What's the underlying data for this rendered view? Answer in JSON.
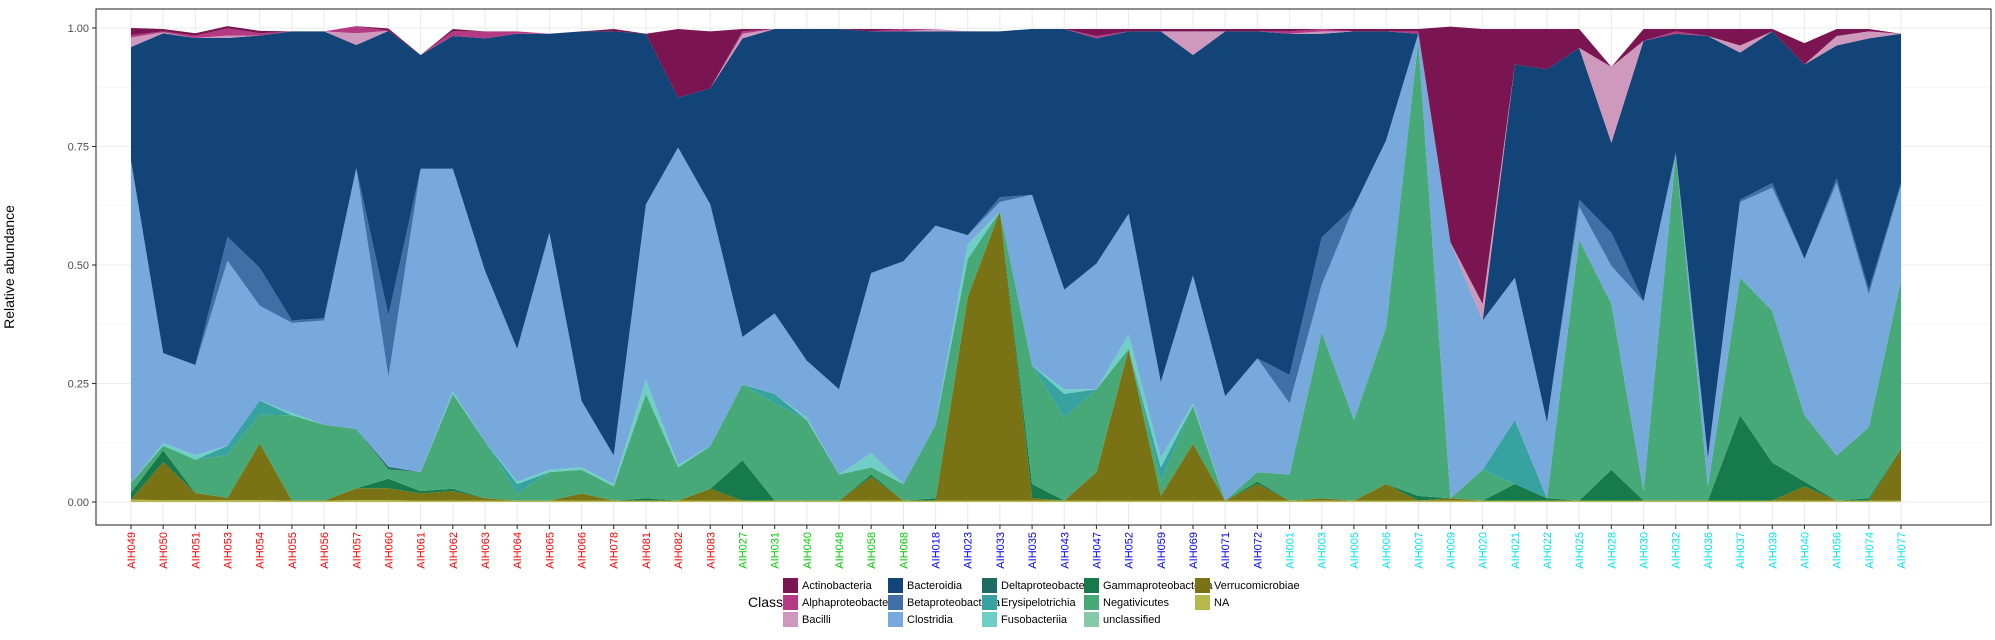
{
  "chart_data": {
    "type": "area",
    "stacked": true,
    "ylabel": "Relative abundance",
    "xlabel": "",
    "ylim": [
      0,
      1
    ],
    "yticks": [
      0.0,
      0.25,
      0.5,
      0.75,
      1.0
    ],
    "ytick_labels": [
      "0.00",
      "0.25",
      "0.50",
      "0.75",
      "1.00"
    ],
    "grid": true,
    "legend_position": "bottom",
    "legend_title": "Class",
    "categories": [
      "AIH049",
      "AIH050",
      "AIH051",
      "AIH053",
      "AIH054",
      "AIH055",
      "AIH056",
      "AIH057",
      "AIH060",
      "AIH061",
      "AIH062",
      "AIH063",
      "AIH064",
      "AIH065",
      "AIH066",
      "AIH078",
      "AIH081",
      "AIH082",
      "AIH083",
      "AIH027",
      "AIH031",
      "AIH040",
      "AIH048",
      "AIH058",
      "AIH068",
      "AIH018",
      "AIH023",
      "AIH033",
      "AIH035",
      "AIH043",
      "AIH047",
      "AIH052",
      "AIH059",
      "AIH069",
      "AIH071",
      "AIH072",
      "AIH001",
      "AIH003",
      "AIH005",
      "AIH006",
      "AIH007",
      "AIH009",
      "AIH020",
      "AIH021",
      "AIH022",
      "AIH025",
      "AIH028",
      "AIH030",
      "AIH032",
      "AIH036",
      "AIH037",
      "AIH039",
      "AIH040",
      "AIH056",
      "AIH074",
      "AIH077"
    ],
    "category_colors": [
      "#ff0000",
      "#ff0000",
      "#ff0000",
      "#ff0000",
      "#ff0000",
      "#ff0000",
      "#ff0000",
      "#ff0000",
      "#ff0000",
      "#ff0000",
      "#ff0000",
      "#ff0000",
      "#ff0000",
      "#ff0000",
      "#ff0000",
      "#ff0000",
      "#ff0000",
      "#ff0000",
      "#ff0000",
      "#00cc00",
      "#00cc00",
      "#00cc00",
      "#00cc00",
      "#00cc00",
      "#00cc00",
      "#0000ff",
      "#0000ff",
      "#0000ff",
      "#0000ff",
      "#0000ff",
      "#0000ff",
      "#0000ff",
      "#0000ff",
      "#0000ff",
      "#0000ff",
      "#0000ff",
      "#00e5ee",
      "#00e5ee",
      "#00e5ee",
      "#00e5ee",
      "#00e5ee",
      "#00e5ee",
      "#00e5ee",
      "#00e5ee",
      "#00e5ee",
      "#00e5ee",
      "#00e5ee",
      "#00e5ee",
      "#00e5ee",
      "#00e5ee",
      "#00e5ee",
      "#00e5ee",
      "#00e5ee",
      "#00e5ee",
      "#00e5ee",
      "#00e5ee"
    ],
    "stack_order": [
      "NA",
      "Verrucomicrobiae",
      "Gammaproteobacteria",
      "Negativicutes",
      "Deltaproteobacteria",
      "Erysipelotrichia",
      "Fusobacteriia",
      "unclassified",
      "Clostridia",
      "Betaproteobacteria",
      "Bacteroidia",
      "Bacilli",
      "Alphaproteobacteria",
      "Actinobacteria"
    ],
    "series": [
      {
        "name": "NA",
        "color": "#b5b84a",
        "values": [
          0.005,
          0.004,
          0.004,
          0.004,
          0.004,
          0.003,
          0.003,
          0.004,
          0.004,
          0.003,
          0.003,
          0.003,
          0.003,
          0.003,
          0.003,
          0.003,
          0.003,
          0.003,
          0.003,
          0.003,
          0.003,
          0.003,
          0.003,
          0.003,
          0.003,
          0.003,
          0.003,
          0.003,
          0.003,
          0.003,
          0.003,
          0.003,
          0.003,
          0.003,
          0.003,
          0.003,
          0.003,
          0.003,
          0.003,
          0.003,
          0.003,
          0.003,
          0.003,
          0.003,
          0.003,
          0.003,
          0.003,
          0.003,
          0.003,
          0.003,
          0.003,
          0.003,
          0.003,
          0.003,
          0.003,
          0.003
        ]
      },
      {
        "name": "Verrucomicrobiae",
        "color": "#7a7315",
        "values": [
          0.0,
          0.08,
          0.015,
          0.005,
          0.12,
          0.0,
          0.0,
          0.025,
          0.025,
          0.015,
          0.02,
          0.005,
          0.0,
          0.0,
          0.015,
          0.0,
          0.0,
          0.0,
          0.025,
          0.0,
          0.0,
          0.0,
          0.0,
          0.05,
          0.0,
          0.0,
          0.43,
          0.61,
          0.005,
          0.0,
          0.06,
          0.32,
          0.01,
          0.12,
          0.0,
          0.035,
          0.0,
          0.005,
          0.0,
          0.035,
          0.0,
          0.005,
          0.0,
          0.0,
          0.0,
          0.0,
          0.0,
          0.0,
          0.0,
          0.0,
          0.0,
          0.0,
          0.03,
          0.0,
          0.0,
          0.11
        ]
      },
      {
        "name": "Gammaproteobacteria",
        "color": "#167a4a",
        "values": [
          0.015,
          0.025,
          0.0,
          0.0,
          0.0,
          0.0,
          0.0,
          0.0,
          0.02,
          0.005,
          0.005,
          0.0,
          0.0,
          0.0,
          0.0,
          0.0,
          0.005,
          0.0,
          0.0,
          0.085,
          0.0,
          0.0,
          0.0,
          0.005,
          0.0,
          0.005,
          0.0,
          0.0,
          0.03,
          0.0,
          0.0,
          0.0,
          0.0,
          0.0,
          0.0,
          0.005,
          0.0,
          0.0,
          0.0,
          0.0,
          0.01,
          0.0,
          0.0,
          0.035,
          0.005,
          0.0,
          0.065,
          0.0,
          0.0,
          0.0,
          0.18,
          0.08,
          0.01,
          0.0,
          0.005,
          0.0
        ]
      },
      {
        "name": "Negativicutes",
        "color": "#47a978",
        "values": [
          0.02,
          0.01,
          0.07,
          0.09,
          0.06,
          0.18,
          0.16,
          0.125,
          0.02,
          0.04,
          0.2,
          0.12,
          0.015,
          0.06,
          0.05,
          0.03,
          0.22,
          0.07,
          0.09,
          0.16,
          0.205,
          0.17,
          0.055,
          0.015,
          0.035,
          0.155,
          0.08,
          0.0,
          0.25,
          0.175,
          0.175,
          0.0,
          0.03,
          0.08,
          0.0,
          0.02,
          0.055,
          0.35,
          0.17,
          0.33,
          0.96,
          0.0,
          0.065,
          0.0,
          0.0,
          0.55,
          0.35,
          0.02,
          0.73,
          0.03,
          0.29,
          0.32,
          0.14,
          0.095,
          0.15,
          0.355
        ]
      },
      {
        "name": "Deltaproteobacteria",
        "color": "#1d6b63",
        "values": [
          0.0,
          0.0,
          0.0,
          0.0,
          0.0,
          0.0,
          0.0,
          0.0,
          0.005,
          0.0,
          0.0,
          0.0,
          0.0,
          0.0,
          0.0,
          0.0,
          0.0,
          0.0,
          0.0,
          0.0,
          0.0,
          0.0,
          0.0,
          0.0,
          0.0,
          0.0,
          0.0,
          0.0,
          0.0,
          0.0,
          0.0,
          0.0,
          0.0,
          0.0,
          0.0,
          0.0,
          0.0,
          0.0,
          0.0,
          0.0,
          0.0,
          0.0,
          0.0,
          0.0,
          0.0,
          0.0,
          0.0,
          0.0,
          0.0,
          0.0,
          0.0,
          0.0,
          0.0,
          0.0,
          0.0,
          0.0
        ]
      },
      {
        "name": "Erysipelotrichia",
        "color": "#36a3a0",
        "values": [
          0.0,
          0.0,
          0.0,
          0.02,
          0.03,
          0.0,
          0.0,
          0.0,
          0.0,
          0.0,
          0.0,
          0.0,
          0.02,
          0.0,
          0.0,
          0.0,
          0.0,
          0.0,
          0.0,
          0.0,
          0.02,
          0.0,
          0.0,
          0.0,
          0.0,
          0.0,
          0.0,
          0.0,
          0.0,
          0.05,
          0.0,
          0.0,
          0.03,
          0.0,
          0.0,
          0.0,
          0.0,
          0.0,
          0.0,
          0.0,
          0.0,
          0.0,
          0.0,
          0.135,
          0.0,
          0.0,
          0.0,
          0.0,
          0.0,
          0.0,
          0.0,
          0.0,
          0.0,
          0.0,
          0.0,
          0.0
        ]
      },
      {
        "name": "Fusobacteriia",
        "color": "#6fcfc7",
        "values": [
          0.0,
          0.005,
          0.01,
          0.0,
          0.0,
          0.005,
          0.0,
          0.0,
          0.0,
          0.0,
          0.005,
          0.0,
          0.005,
          0.005,
          0.005,
          0.005,
          0.03,
          0.005,
          0.0,
          0.0,
          0.0,
          0.005,
          0.0,
          0.03,
          0.0,
          0.0,
          0.03,
          0.0,
          0.0,
          0.01,
          0.0,
          0.03,
          0.02,
          0.005,
          0.0,
          0.0,
          0.0,
          0.0,
          0.0,
          0.0,
          0.0,
          0.0,
          0.0,
          0.0,
          0.0,
          0.0,
          0.0,
          0.0,
          0.0,
          0.0,
          0.0,
          0.0,
          0.0,
          0.0,
          0.0,
          0.0
        ]
      },
      {
        "name": "unclassified",
        "color": "#86c9a8",
        "values": [
          0.0,
          0.0,
          0.0,
          0.0,
          0.0,
          0.0,
          0.0,
          0.0,
          0.0,
          0.0,
          0.0,
          0.0,
          0.0,
          0.0,
          0.0,
          0.0,
          0.0,
          0.0,
          0.0,
          0.0,
          0.0,
          0.0,
          0.0,
          0.0,
          0.0,
          0.0,
          0.0,
          0.0,
          0.0,
          0.0,
          0.0,
          0.0,
          0.0,
          0.0,
          0.0,
          0.0,
          0.0,
          0.0,
          0.0,
          0.0,
          0.0,
          0.0,
          0.0,
          0.0,
          0.0,
          0.0,
          0.0,
          0.0,
          0.0,
          0.0,
          0.0,
          0.0,
          0.0,
          0.0,
          0.0,
          0.0
        ]
      },
      {
        "name": "Clostridia",
        "color": "#78a9dd",
        "values": [
          0.68,
          0.19,
          0.19,
          0.39,
          0.2,
          0.19,
          0.22,
          0.55,
          0.19,
          0.64,
          0.47,
          0.36,
          0.28,
          0.5,
          0.14,
          0.06,
          0.37,
          0.67,
          0.51,
          0.1,
          0.17,
          0.12,
          0.18,
          0.38,
          0.47,
          0.42,
          0.02,
          0.02,
          0.36,
          0.21,
          0.265,
          0.255,
          0.16,
          0.27,
          0.22,
          0.24,
          0.15,
          0.1,
          0.45,
          0.395,
          0.015,
          0.54,
          0.315,
          0.3,
          0.16,
          0.07,
          0.08,
          0.4,
          0.0,
          0.06,
          0.16,
          0.26,
          0.33,
          0.575,
          0.28,
          0.2
        ]
      },
      {
        "name": "Betaproteobacteria",
        "color": "#3f6fa5",
        "values": [
          0.0,
          0.0,
          0.0,
          0.05,
          0.08,
          0.005,
          0.005,
          0.0,
          0.13,
          0.0,
          0.0,
          0.0,
          0.0,
          0.0,
          0.0,
          0.0,
          0.0,
          0.0,
          0.0,
          0.0,
          0.0,
          0.0,
          0.0,
          0.0,
          0.0,
          0.0,
          0.0,
          0.01,
          0.0,
          0.0,
          0.0,
          0.0,
          0.0,
          0.0,
          0.0,
          0.0,
          0.06,
          0.1,
          0.0,
          0.0,
          0.0,
          0.0,
          0.0,
          0.0,
          0.0,
          0.015,
          0.07,
          0.0,
          0.005,
          0.0,
          0.005,
          0.01,
          0.0,
          0.01,
          0.01,
          0.005
        ]
      },
      {
        "name": "Bacteroidia",
        "color": "#124478",
        "values": [
          0.24,
          0.675,
          0.69,
          0.42,
          0.49,
          0.61,
          0.605,
          0.26,
          0.6,
          0.24,
          0.28,
          0.49,
          0.665,
          0.42,
          0.78,
          0.895,
          0.36,
          0.105,
          0.245,
          0.63,
          0.6,
          0.7,
          0.76,
          0.51,
          0.485,
          0.41,
          0.43,
          0.35,
          0.35,
          0.55,
          0.475,
          0.385,
          0.74,
          0.465,
          0.77,
          0.69,
          0.72,
          0.43,
          0.37,
          0.23,
          0.0,
          0.0,
          0.0,
          0.45,
          0.745,
          0.32,
          0.19,
          0.55,
          0.25,
          0.89,
          0.31,
          0.32,
          0.41,
          0.28,
          0.53,
          0.315
        ]
      },
      {
        "name": "Bacilli",
        "color": "#cf98bd",
        "values": [
          0.02,
          0.002,
          0.0,
          0.005,
          0.0,
          0.0,
          0.0,
          0.025,
          0.0,
          0.0,
          0.0,
          0.0,
          0.0,
          0.0,
          0.0,
          0.0,
          0.0,
          0.0,
          0.0,
          0.01,
          0.0,
          0.0,
          0.0,
          0.0,
          0.0,
          0.005,
          0.0,
          0.0,
          0.0,
          0.0,
          0.0,
          0.0,
          0.0,
          0.05,
          0.0,
          0.0,
          0.0,
          0.005,
          0.0,
          0.0,
          0.0,
          0.0,
          0.035,
          0.0,
          0.0,
          0.0,
          0.16,
          0.0,
          0.0,
          0.0,
          0.015,
          0.0,
          0.0,
          0.02,
          0.015,
          0.0
        ]
      },
      {
        "name": "Alphaproteobacteria",
        "color": "#b43a83",
        "values": [
          0.005,
          0.002,
          0.005,
          0.015,
          0.005,
          0.0,
          0.0,
          0.015,
          0.0,
          0.0,
          0.01,
          0.015,
          0.005,
          0.0,
          0.0,
          0.0,
          0.0,
          0.0,
          0.0,
          0.005,
          0.0,
          0.0,
          0.0,
          0.0,
          0.005,
          0.0,
          0.0,
          0.0,
          0.0,
          0.0,
          0.005,
          0.0,
          0.0,
          0.0,
          0.0,
          0.0,
          0.005,
          0.005,
          0.0,
          0.0,
          0.005,
          0.0,
          0.0,
          0.0,
          0.0,
          0.0,
          0.0,
          0.0,
          0.005,
          0.0,
          0.0,
          0.0,
          0.0,
          0.0,
          0.0,
          0.0
        ]
      },
      {
        "name": "Actinobacteria",
        "color": "#7b1551",
        "values": [
          0.015,
          0.005,
          0.005,
          0.005,
          0.005,
          0.0,
          0.0,
          0.0,
          0.005,
          0.0,
          0.005,
          0.0,
          0.0,
          0.0,
          0.0,
          0.005,
          0.0,
          0.145,
          0.12,
          0.005,
          0.0,
          0.0,
          0.0,
          0.005,
          0.0,
          0.0,
          0.0,
          0.0,
          0.0,
          0.0,
          0.015,
          0.005,
          0.005,
          0.005,
          0.005,
          0.005,
          0.005,
          0.0,
          0.005,
          0.005,
          0.005,
          0.455,
          0.58,
          0.075,
          0.085,
          0.04,
          0.0,
          0.025,
          0.005,
          0.015,
          0.035,
          0.005,
          0.045,
          0.015,
          0.005,
          0.0
        ]
      }
    ],
    "legend": [
      [
        "Actinobacteria",
        "Alphaproteobacteria",
        "Bacilli"
      ],
      [
        "Bacteroidia",
        "Betaproteobacteria",
        "Clostridia"
      ],
      [
        "Deltaproteobacteria",
        "Erysipelotrichia",
        "Fusobacteriia"
      ],
      [
        "Gammaproteobacteria",
        "Negativicutes",
        "unclassified"
      ],
      [
        "Verrucomicrobiae",
        "NA"
      ]
    ]
  }
}
